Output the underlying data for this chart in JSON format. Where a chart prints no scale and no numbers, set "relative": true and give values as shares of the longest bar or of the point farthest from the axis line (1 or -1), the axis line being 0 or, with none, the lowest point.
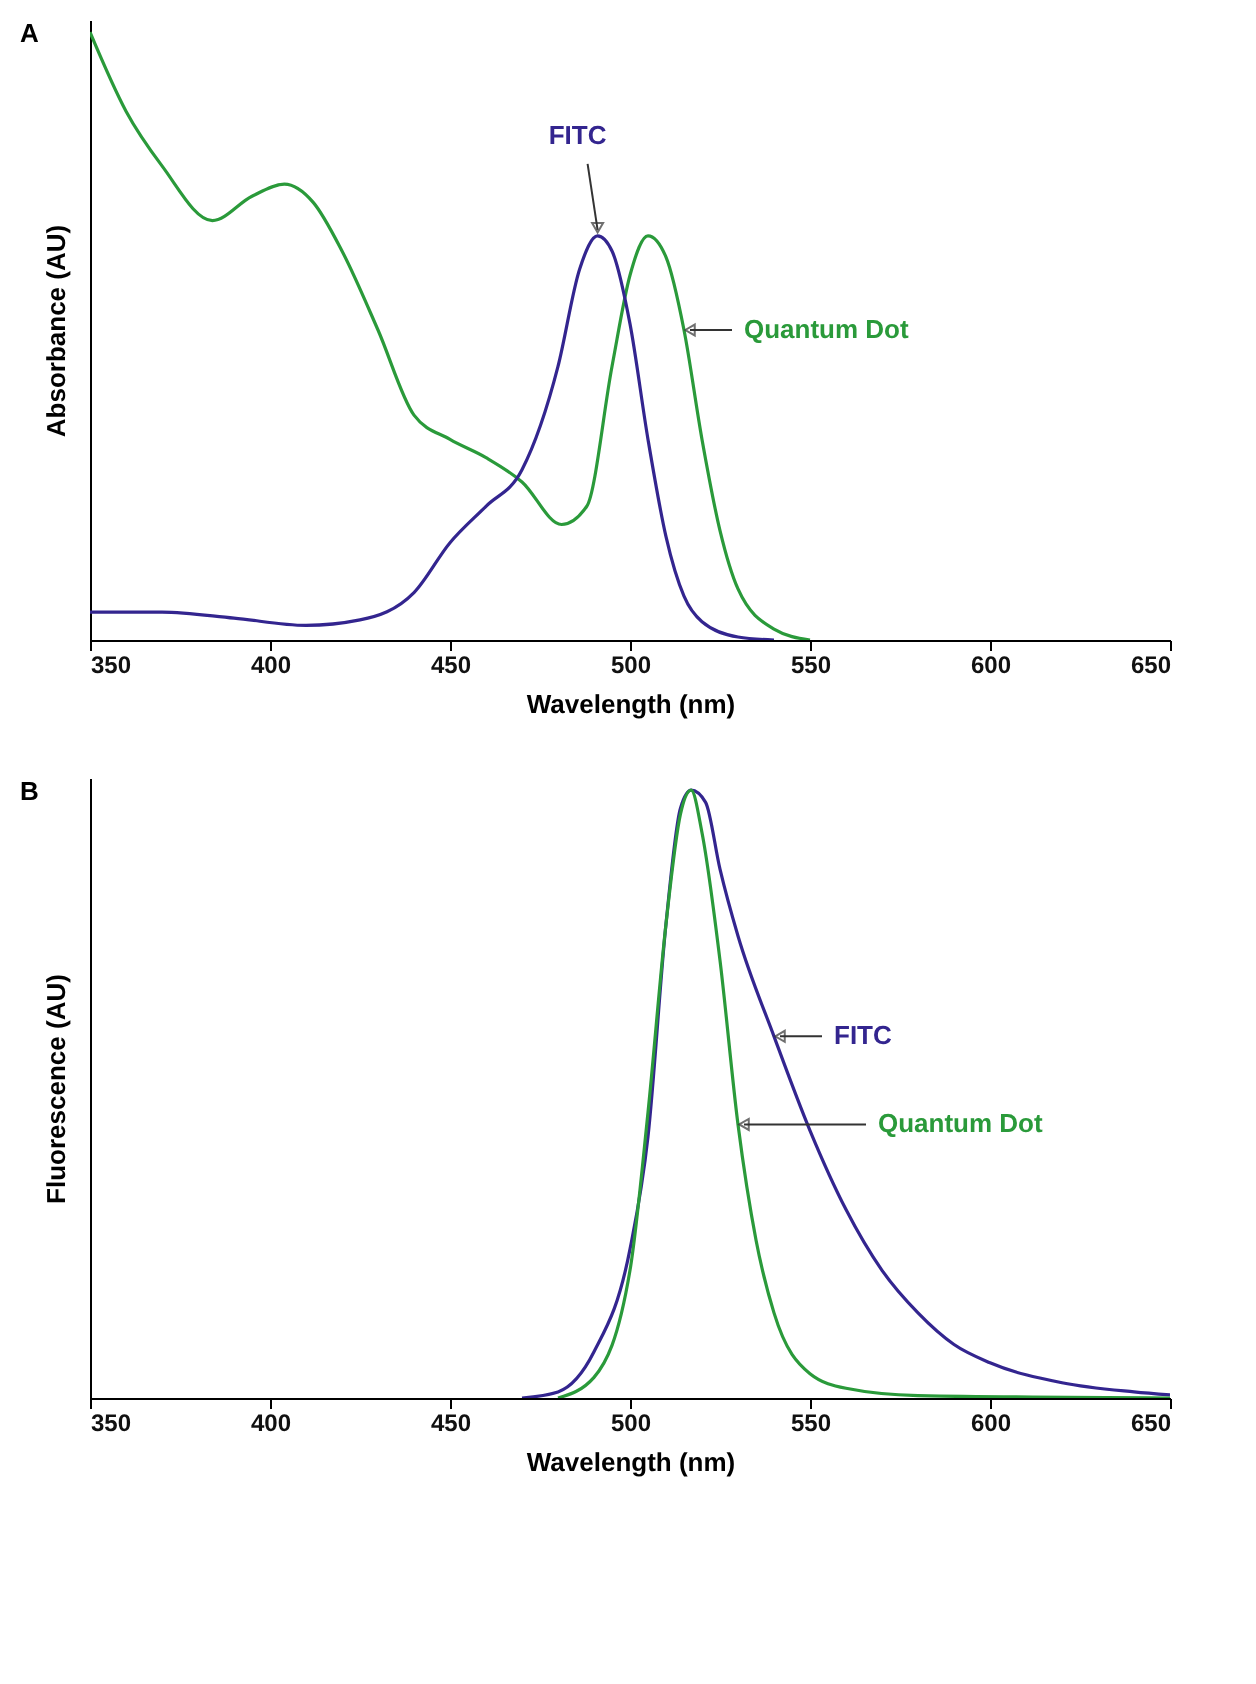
{
  "chart_data": [
    {
      "type": "line",
      "title": "A",
      "xlabel": "Wavelength (nm)",
      "ylabel": "Absorbance (AU)",
      "relative": true,
      "xlim": [
        350,
        650
      ],
      "xticks": [
        350,
        400,
        450,
        500,
        550,
        600,
        650
      ],
      "grid": false,
      "series": [
        {
          "name": "Quantum Dot",
          "color": "#2a9a3a",
          "x": [
            350,
            360,
            370,
            384,
            395,
            404,
            412,
            420,
            430,
            440,
            450,
            460,
            470,
            481,
            488,
            495,
            500,
            505,
            510,
            515,
            520,
            525,
            530,
            540,
            550
          ],
          "values": [
            1.0,
            0.87,
            0.78,
            0.69,
            0.73,
            0.75,
            0.72,
            0.64,
            0.51,
            0.37,
            0.33,
            0.3,
            0.26,
            0.19,
            0.22,
            0.45,
            0.6,
            0.665,
            0.63,
            0.51,
            0.33,
            0.18,
            0.084,
            0.018,
            0
          ]
        },
        {
          "name": "FITC",
          "color": "#33258f",
          "x": [
            350,
            370,
            390,
            410,
            425,
            440,
            450,
            460,
            470,
            480,
            486,
            491,
            495,
            500,
            505,
            510,
            515,
            520,
            530,
            540
          ],
          "values": [
            0.046,
            0.046,
            0.036,
            0.024,
            0.033,
            0.078,
            0.16,
            0.22,
            0.28,
            0.45,
            0.61,
            0.665,
            0.64,
            0.52,
            0.33,
            0.17,
            0.072,
            0.03,
            0.005,
            0
          ]
        }
      ]
    },
    {
      "type": "line",
      "title": "B",
      "xlabel": "Wavelength (nm)",
      "ylabel": "Fluorescence (AU)",
      "relative": true,
      "xlim": [
        350,
        650
      ],
      "xticks": [
        350,
        400,
        450,
        500,
        550,
        600,
        650
      ],
      "grid": false,
      "series": [
        {
          "name": "FITC",
          "color": "#33258f",
          "x": [
            470,
            480,
            490,
            500,
            505,
            510,
            514,
            517,
            521,
            525,
            530,
            540,
            550,
            560,
            570,
            580,
            590,
            600,
            620,
            640,
            650
          ],
          "values": [
            0,
            0.01,
            0.076,
            0.245,
            0.43,
            0.78,
            0.97,
            1.0,
            0.98,
            0.87,
            0.76,
            0.595,
            0.44,
            0.31,
            0.21,
            0.14,
            0.088,
            0.058,
            0.025,
            0.01,
            0.005
          ]
        },
        {
          "name": "Quantum Dot",
          "color": "#2a9a3a",
          "x": [
            480,
            490,
            500,
            505,
            510,
            514,
            517,
            520,
            525,
            530,
            535,
            540,
            550,
            560,
            580,
            650
          ],
          "values": [
            0,
            0.034,
            0.21,
            0.47,
            0.78,
            0.96,
            1.0,
            0.93,
            0.72,
            0.45,
            0.26,
            0.14,
            0.04,
            0.016,
            0.004,
            0
          ]
        }
      ]
    }
  ]
}
